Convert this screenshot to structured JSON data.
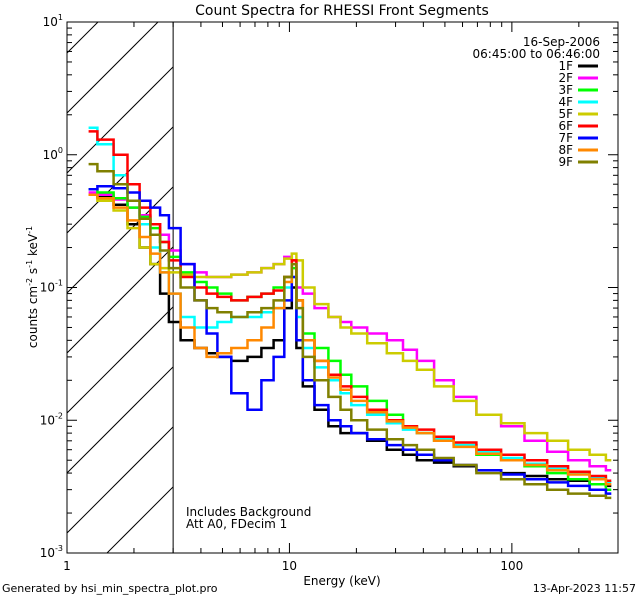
{
  "chart_data": {
    "type": "line",
    "title": "Count Spectra for RHESSI Front Segments",
    "xlabel": "Energy (keV)",
    "ylabel": "counts cm-2 s-1 keV-1",
    "xscale": "log",
    "yscale": "log",
    "xlim": [
      1,
      300
    ],
    "ylim": [
      0.001,
      10
    ],
    "x_ticks": [
      {
        "value": 1,
        "label": "1"
      },
      {
        "value": 10,
        "label": "10"
      },
      {
        "value": 100,
        "label": "100"
      }
    ],
    "y_ticks": [
      {
        "value": 0.001,
        "label": "10",
        "exp": "-3"
      },
      {
        "value": 0.01,
        "label": "10",
        "exp": "-2"
      },
      {
        "value": 0.1,
        "label": "10",
        "exp": "-1"
      },
      {
        "value": 1,
        "label": "10",
        "exp": "0"
      },
      {
        "value": 10,
        "label": "10",
        "exp": "1"
      }
    ],
    "date": "16-Sep-2006",
    "time_range": "06:45:00 to 06:46:00",
    "annotation_line1": "Includes Background",
    "annotation_line2": "Att A0, FDecim 1",
    "excluded_region_keV": [
      1,
      3
    ],
    "series": [
      {
        "name": "1F",
        "color": "#000000",
        "x": [
          1.25,
          1.5,
          1.75,
          2.0,
          2.25,
          2.5,
          2.75,
          3.0,
          3.5,
          4.0,
          4.5,
          5.0,
          6.0,
          7.0,
          8.0,
          9.0,
          10.0,
          10.5,
          11.0,
          12.0,
          14.0,
          16.0,
          18.0,
          20.0,
          25.0,
          30.0,
          35.0,
          40.0,
          50.0,
          60.0,
          80.0,
          100.0,
          130.0,
          160.0,
          200.0,
          250.0,
          280.0
        ],
        "y": [
          0.5,
          0.48,
          0.42,
          0.3,
          0.2,
          0.15,
          0.09,
          0.055,
          0.04,
          0.035,
          0.032,
          0.03,
          0.028,
          0.03,
          0.035,
          0.04,
          0.07,
          0.1,
          0.035,
          0.018,
          0.012,
          0.009,
          0.008,
          0.008,
          0.007,
          0.006,
          0.0055,
          0.005,
          0.0048,
          0.0045,
          0.0042,
          0.004,
          0.0038,
          0.0036,
          0.0035,
          0.0033,
          0.0032
        ]
      },
      {
        "name": "2F",
        "color": "#ff00ff",
        "x": [
          1.25,
          1.5,
          1.75,
          2.0,
          2.25,
          2.5,
          2.75,
          3.0,
          3.5,
          4.0,
          4.5,
          5.0,
          6.0,
          7.0,
          8.0,
          9.0,
          10.0,
          10.5,
          11.0,
          12.0,
          14.0,
          16.0,
          18.0,
          20.0,
          25.0,
          30.0,
          35.0,
          40.0,
          50.0,
          60.0,
          80.0,
          100.0,
          130.0,
          160.0,
          200.0,
          250.0,
          280.0
        ],
        "y": [
          0.52,
          0.5,
          0.46,
          0.4,
          0.35,
          0.3,
          0.25,
          0.19,
          0.15,
          0.13,
          0.12,
          0.12,
          0.125,
          0.13,
          0.14,
          0.15,
          0.17,
          0.16,
          0.1,
          0.09,
          0.07,
          0.06,
          0.055,
          0.05,
          0.045,
          0.04,
          0.034,
          0.028,
          0.02,
          0.015,
          0.011,
          0.009,
          0.007,
          0.0058,
          0.005,
          0.0045,
          0.0042
        ]
      },
      {
        "name": "3F",
        "color": "#00ff00",
        "x": [
          1.25,
          1.5,
          1.75,
          2.0,
          2.25,
          2.5,
          2.75,
          3.0,
          3.5,
          4.0,
          4.5,
          5.0,
          6.0,
          7.0,
          8.0,
          9.0,
          10.0,
          10.5,
          11.0,
          12.0,
          14.0,
          16.0,
          18.0,
          20.0,
          25.0,
          30.0,
          35.0,
          40.0,
          50.0,
          60.0,
          80.0,
          100.0,
          130.0,
          160.0,
          200.0,
          250.0,
          280.0
        ],
        "y": [
          0.55,
          0.52,
          0.47,
          0.4,
          0.34,
          0.28,
          0.22,
          0.17,
          0.13,
          0.11,
          0.1,
          0.09,
          0.08,
          0.085,
          0.09,
          0.1,
          0.12,
          0.14,
          0.08,
          0.045,
          0.035,
          0.028,
          0.022,
          0.018,
          0.014,
          0.011,
          0.009,
          0.008,
          0.007,
          0.0065,
          0.0055,
          0.005,
          0.0045,
          0.004,
          0.0036,
          0.0033,
          0.003
        ]
      },
      {
        "name": "4F",
        "color": "#00ffff",
        "x": [
          1.25,
          1.5,
          1.75,
          2.0,
          2.25,
          2.5,
          2.75,
          3.0,
          3.5,
          4.0,
          4.5,
          5.0,
          6.0,
          7.0,
          8.0,
          9.0,
          10.0,
          10.5,
          11.0,
          12.0,
          14.0,
          16.0,
          18.0,
          20.0,
          25.0,
          30.0,
          35.0,
          40.0,
          50.0,
          60.0,
          80.0,
          100.0,
          130.0,
          160.0,
          200.0,
          250.0,
          280.0
        ],
        "y": [
          1.6,
          1.2,
          0.7,
          0.45,
          0.3,
          0.2,
          0.13,
          0.09,
          0.06,
          0.05,
          0.05,
          0.055,
          0.06,
          0.06,
          0.065,
          0.07,
          0.1,
          0.12,
          0.06,
          0.035,
          0.025,
          0.02,
          0.016,
          0.013,
          0.011,
          0.0095,
          0.0085,
          0.008,
          0.0072,
          0.0065,
          0.0058,
          0.0052,
          0.0047,
          0.0043,
          0.004,
          0.0037,
          0.0034
        ]
      },
      {
        "name": "5F",
        "color": "#cccc00",
        "x": [
          1.25,
          1.5,
          1.75,
          2.0,
          2.25,
          2.5,
          2.75,
          3.0,
          3.5,
          4.0,
          4.5,
          5.0,
          6.0,
          7.0,
          8.0,
          9.0,
          10.0,
          10.5,
          11.0,
          12.0,
          14.0,
          16.0,
          18.0,
          20.0,
          25.0,
          30.0,
          35.0,
          40.0,
          50.0,
          60.0,
          80.0,
          100.0,
          130.0,
          160.0,
          200.0,
          250.0,
          280.0
        ],
        "y": [
          0.5,
          0.45,
          0.38,
          0.28,
          0.2,
          0.15,
          0.14,
          0.13,
          0.125,
          0.12,
          0.12,
          0.12,
          0.125,
          0.13,
          0.14,
          0.15,
          0.165,
          0.18,
          0.16,
          0.1,
          0.075,
          0.06,
          0.05,
          0.045,
          0.038,
          0.032,
          0.028,
          0.024,
          0.018,
          0.014,
          0.011,
          0.0095,
          0.008,
          0.007,
          0.006,
          0.0055,
          0.005
        ]
      },
      {
        "name": "6F",
        "color": "#ff0000",
        "x": [
          1.25,
          1.5,
          1.75,
          2.0,
          2.25,
          2.5,
          2.75,
          3.0,
          3.5,
          4.0,
          4.5,
          5.0,
          6.0,
          7.0,
          8.0,
          9.0,
          10.0,
          10.5,
          11.0,
          12.0,
          14.0,
          16.0,
          18.0,
          20.0,
          25.0,
          30.0,
          35.0,
          40.0,
          50.0,
          60.0,
          80.0,
          100.0,
          130.0,
          160.0,
          200.0,
          250.0,
          280.0
        ],
        "y": [
          1.5,
          1.3,
          1.0,
          0.6,
          0.4,
          0.3,
          0.22,
          0.16,
          0.12,
          0.1,
          0.09,
          0.085,
          0.08,
          0.085,
          0.09,
          0.095,
          0.12,
          0.16,
          0.08,
          0.04,
          0.028,
          0.022,
          0.018,
          0.015,
          0.012,
          0.01,
          0.009,
          0.0085,
          0.0075,
          0.0068,
          0.006,
          0.0055,
          0.005,
          0.0045,
          0.0041,
          0.0038,
          0.0035
        ]
      },
      {
        "name": "7F",
        "color": "#0000ff",
        "x": [
          1.25,
          1.5,
          1.75,
          2.0,
          2.25,
          2.5,
          2.75,
          3.0,
          3.5,
          4.0,
          4.5,
          5.0,
          6.0,
          7.0,
          8.0,
          9.0,
          10.0,
          10.5,
          11.0,
          12.0,
          14.0,
          16.0,
          18.0,
          20.0,
          25.0,
          30.0,
          35.0,
          40.0,
          50.0,
          60.0,
          80.0,
          100.0,
          130.0,
          160.0,
          200.0,
          250.0,
          280.0
        ],
        "y": [
          0.55,
          0.58,
          0.56,
          0.52,
          0.45,
          0.4,
          0.35,
          0.28,
          0.15,
          0.08,
          0.045,
          0.03,
          0.016,
          0.012,
          0.02,
          0.03,
          0.08,
          0.12,
          0.04,
          0.02,
          0.013,
          0.01,
          0.009,
          0.008,
          0.0072,
          0.0065,
          0.006,
          0.0055,
          0.005,
          0.0046,
          0.0042,
          0.0039,
          0.0036,
          0.0034,
          0.0032,
          0.003,
          0.0028
        ]
      },
      {
        "name": "8F",
        "color": "#ff8800",
        "x": [
          1.25,
          1.5,
          1.75,
          2.0,
          2.25,
          2.5,
          2.75,
          3.0,
          3.5,
          4.0,
          4.5,
          5.0,
          6.0,
          7.0,
          8.0,
          9.0,
          10.0,
          10.5,
          11.0,
          12.0,
          14.0,
          16.0,
          18.0,
          20.0,
          25.0,
          30.0,
          35.0,
          40.0,
          50.0,
          60.0,
          80.0,
          100.0,
          130.0,
          160.0,
          200.0,
          250.0,
          280.0
        ],
        "y": [
          0.5,
          0.47,
          0.4,
          0.32,
          0.24,
          0.18,
          0.13,
          0.09,
          0.05,
          0.035,
          0.03,
          0.032,
          0.035,
          0.04,
          0.05,
          0.07,
          0.11,
          0.15,
          0.08,
          0.04,
          0.028,
          0.021,
          0.017,
          0.014,
          0.0115,
          0.0098,
          0.0088,
          0.008,
          0.007,
          0.0063,
          0.0056,
          0.005,
          0.0046,
          0.0042,
          0.0039,
          0.0036,
          0.0033
        ]
      },
      {
        "name": "9F",
        "color": "#808000",
        "x": [
          1.25,
          1.5,
          1.75,
          2.0,
          2.25,
          2.5,
          2.75,
          3.0,
          3.5,
          4.0,
          4.5,
          5.0,
          6.0,
          7.0,
          8.0,
          9.0,
          10.0,
          10.5,
          11.0,
          12.0,
          14.0,
          16.0,
          18.0,
          20.0,
          25.0,
          30.0,
          35.0,
          40.0,
          50.0,
          60.0,
          80.0,
          100.0,
          130.0,
          160.0,
          200.0,
          250.0,
          280.0
        ],
        "y": [
          0.85,
          0.75,
          0.6,
          0.45,
          0.33,
          0.25,
          0.19,
          0.14,
          0.1,
          0.08,
          0.07,
          0.065,
          0.06,
          0.065,
          0.07,
          0.08,
          0.12,
          0.15,
          0.07,
          0.03,
          0.02,
          0.015,
          0.012,
          0.01,
          0.0085,
          0.0072,
          0.0065,
          0.006,
          0.0052,
          0.0046,
          0.004,
          0.0036,
          0.0033,
          0.003,
          0.0028,
          0.0027,
          0.0026
        ]
      }
    ]
  },
  "footer": {
    "left": "Generated by hsi_min_spectra_plot.pro",
    "right": "13-Apr-2023 11:57"
  }
}
